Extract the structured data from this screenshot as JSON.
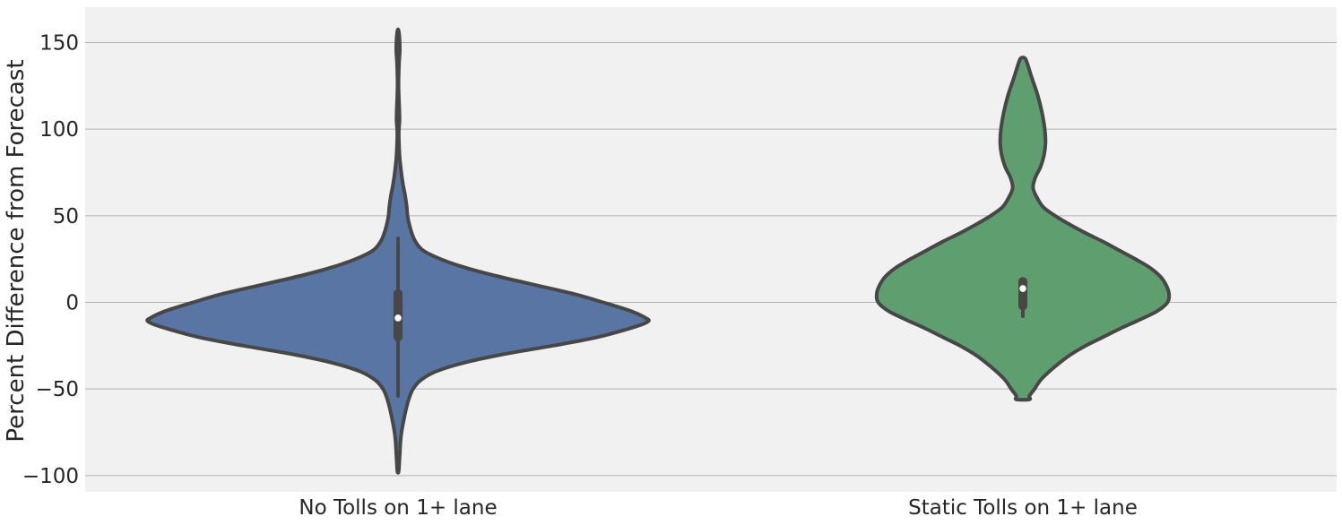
{
  "chart_data": {
    "type": "violin",
    "title": "",
    "xlabel": "",
    "ylabel": "Percent Difference from Forecast",
    "ylim": [
      -110,
      170
    ],
    "yticks": [
      150,
      100,
      50,
      0,
      -50,
      -100
    ],
    "ytick_labels": [
      "150",
      "100",
      "50",
      "0",
      "−50",
      "−100"
    ],
    "grid": true,
    "categories": [
      "No Tolls on 1+ lane",
      "Static Tolls on 1+ lane"
    ],
    "series": [
      {
        "category": "No Tolls on 1+ lane",
        "color": "#5975a4",
        "y_range": [
          -98,
          157
        ],
        "median": -9,
        "q1": -20,
        "q3": 5,
        "whisker_low": -54,
        "whisker_high": 37,
        "density_profile": [
          [
            157,
            0.002
          ],
          [
            152,
            0.006
          ],
          [
            145,
            0.007
          ],
          [
            138,
            0.004
          ],
          [
            125,
            0.002
          ],
          [
            112,
            0.005
          ],
          [
            105,
            0.006
          ],
          [
            98,
            0.003
          ],
          [
            85,
            0.006
          ],
          [
            75,
            0.013
          ],
          [
            68,
            0.02
          ],
          [
            62,
            0.028
          ],
          [
            55,
            0.035
          ],
          [
            50,
            0.038
          ],
          [
            45,
            0.045
          ],
          [
            40,
            0.055
          ],
          [
            35,
            0.07
          ],
          [
            30,
            0.1
          ],
          [
            25,
            0.17
          ],
          [
            20,
            0.27
          ],
          [
            15,
            0.4
          ],
          [
            10,
            0.55
          ],
          [
            5,
            0.7
          ],
          [
            0,
            0.82
          ],
          [
            -5,
            0.93
          ],
          [
            -9,
            0.99
          ],
          [
            -11,
            1.0
          ],
          [
            -14,
            0.95
          ],
          [
            -20,
            0.8
          ],
          [
            -25,
            0.62
          ],
          [
            -30,
            0.42
          ],
          [
            -35,
            0.26
          ],
          [
            -40,
            0.15
          ],
          [
            -45,
            0.09
          ],
          [
            -50,
            0.06
          ],
          [
            -55,
            0.045
          ],
          [
            -60,
            0.035
          ],
          [
            -65,
            0.027
          ],
          [
            -70,
            0.02
          ],
          [
            -75,
            0.014
          ],
          [
            -80,
            0.01
          ],
          [
            -85,
            0.008
          ],
          [
            -90,
            0.006
          ],
          [
            -95,
            0.004
          ],
          [
            -98,
            0.002
          ]
        ]
      },
      {
        "category": "Static Tolls on 1+ lane",
        "color": "#5f9e6e",
        "y_range": [
          -56,
          141
        ],
        "median": 8,
        "q1": -2,
        "q3": 12,
        "whisker_low": -8,
        "whisker_high": 13,
        "density_profile": [
          [
            141,
            0.014
          ],
          [
            138,
            0.03
          ],
          [
            130,
            0.06
          ],
          [
            120,
            0.1
          ],
          [
            110,
            0.13
          ],
          [
            100,
            0.15
          ],
          [
            92,
            0.155
          ],
          [
            85,
            0.145
          ],
          [
            78,
            0.12
          ],
          [
            72,
            0.085
          ],
          [
            66,
            0.07
          ],
          [
            60,
            0.1
          ],
          [
            55,
            0.14
          ],
          [
            50,
            0.22
          ],
          [
            45,
            0.32
          ],
          [
            40,
            0.43
          ],
          [
            35,
            0.55
          ],
          [
            30,
            0.66
          ],
          [
            25,
            0.77
          ],
          [
            20,
            0.87
          ],
          [
            15,
            0.94
          ],
          [
            10,
            0.98
          ],
          [
            5,
            1.0
          ],
          [
            0,
            0.99
          ],
          [
            -5,
            0.92
          ],
          [
            -10,
            0.8
          ],
          [
            -15,
            0.67
          ],
          [
            -20,
            0.55
          ],
          [
            -25,
            0.43
          ],
          [
            -30,
            0.33
          ],
          [
            -35,
            0.25
          ],
          [
            -40,
            0.18
          ],
          [
            -45,
            0.12
          ],
          [
            -50,
            0.08
          ],
          [
            -54,
            0.045
          ],
          [
            -56,
            0.045
          ]
        ]
      }
    ]
  }
}
